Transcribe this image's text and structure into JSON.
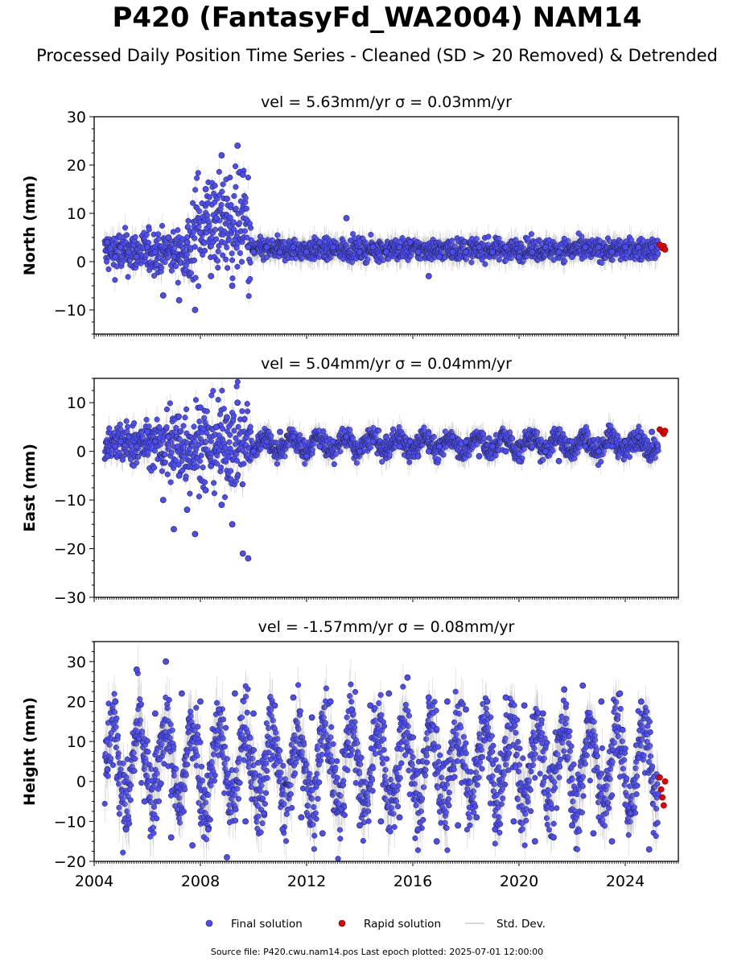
{
  "header": {
    "title": "P420 (FantasyFd_WA2004) NAM14",
    "subtitle": "Processed Daily Position Time Series - Cleaned (SD > 20 Removed) & Detrended"
  },
  "footer": {
    "source": "Source file: P420.cwu.nam14.pos  Last epoch plotted: 2025-07-01 12:00:00"
  },
  "legend": {
    "placement": "bottom-center",
    "items": [
      {
        "label": "Final solution",
        "color": "#4b4bff",
        "marker": "circle"
      },
      {
        "label": "Rapid solution",
        "color": "#e00000",
        "marker": "circle"
      },
      {
        "label": "Std. Dev.",
        "color": "#cccccc",
        "marker": "line"
      }
    ]
  },
  "colors": {
    "final": "#4b4bff",
    "rapid": "#e00000",
    "stddev": "#9a9a9a",
    "edge": "#222222"
  },
  "chart_data": [
    {
      "type": "scatter",
      "title": "vel = 5.63mm/yr   σ = 0.03mm/yr",
      "velocity": "5.63mm/yr",
      "sigma": "0.03mm/yr",
      "ylabel": "North (mm)",
      "xlim": [
        2004.0,
        2026.0
      ],
      "ylim": [
        -15,
        30
      ],
      "xticks": [
        2004,
        2008,
        2012,
        2016,
        2020,
        2024
      ],
      "xtick_labels_shown": false,
      "yticks": [
        -10,
        0,
        10,
        20,
        30
      ],
      "grid": false,
      "series": [
        {
          "name": "Final solution",
          "x": [
            2004.5,
            2004.8,
            2005.0,
            2005.3,
            2005.6,
            2006.0,
            2006.3,
            2006.6,
            2006.8,
            2007.0,
            2007.2,
            2007.5,
            2007.8,
            2008.0,
            2008.2,
            2008.4,
            2008.6,
            2008.8,
            2009.0,
            2009.2,
            2009.4,
            2009.6,
            2009.8,
            2010.0,
            2010.5,
            2011.0,
            2011.5,
            2012.0,
            2012.5,
            2013.0,
            2013.5,
            2014.0,
            2014.5,
            2015.0,
            2015.5,
            2015.9,
            2016.2,
            2016.6,
            2017.0,
            2017.5,
            2018.0,
            2018.5,
            2019.0,
            2019.5,
            2020.0,
            2020.5,
            2021.0,
            2021.5,
            2022.0,
            2022.5,
            2023.0,
            2023.5,
            2024.0,
            2024.5,
            2025.0
          ],
          "y": [
            4,
            1,
            3,
            2,
            1,
            3,
            2,
            -7,
            5,
            1,
            -8,
            4,
            -10,
            6,
            15,
            -3,
            9,
            22,
            13,
            -5,
            24,
            18,
            3,
            2,
            3,
            2,
            3,
            2,
            4,
            3,
            9,
            2,
            3,
            2,
            3,
            4,
            2,
            -3,
            1,
            2,
            2,
            3,
            2,
            3,
            1,
            2,
            3,
            2,
            1,
            3,
            3,
            2,
            3,
            3,
            3
          ]
        },
        {
          "name": "Rapid solution",
          "x": [
            2025.3,
            2025.4,
            2025.45,
            2025.5
          ],
          "y": [
            3.5,
            2.8,
            3.2,
            2.5
          ]
        }
      ]
    },
    {
      "type": "scatter",
      "title": "vel = 5.04mm/yr   σ = 0.04mm/yr",
      "velocity": "5.04mm/yr",
      "sigma": "0.04mm/yr",
      "ylabel": "East (mm)",
      "xlim": [
        2004.0,
        2026.0
      ],
      "ylim": [
        -30,
        15
      ],
      "xticks": [
        2004,
        2008,
        2012,
        2016,
        2020,
        2024
      ],
      "xtick_labels_shown": false,
      "yticks": [
        -30,
        -20,
        -10,
        0,
        10
      ],
      "grid": false,
      "series": [
        {
          "name": "Final solution",
          "x": [
            2004.5,
            2004.8,
            2005.0,
            2005.3,
            2005.6,
            2006.0,
            2006.3,
            2006.6,
            2006.8,
            2007.0,
            2007.2,
            2007.5,
            2007.8,
            2008.0,
            2008.2,
            2008.4,
            2008.6,
            2008.8,
            2009.0,
            2009.2,
            2009.4,
            2009.6,
            2009.8,
            2010.0,
            2010.5,
            2011.0,
            2011.5,
            2012.0,
            2012.5,
            2013.0,
            2013.5,
            2014.0,
            2014.5,
            2015.0,
            2015.5,
            2015.9,
            2016.2,
            2016.6,
            2017.0,
            2017.5,
            2018.0,
            2018.5,
            2019.0,
            2019.5,
            2020.0,
            2020.5,
            2021.0,
            2021.5,
            2022.0,
            2022.5,
            2023.0,
            2023.5,
            2024.0,
            2024.5,
            2025.0
          ],
          "y": [
            -1,
            1,
            2,
            3,
            1,
            4,
            2,
            -10,
            3,
            -16,
            -5,
            -12,
            -17,
            9,
            -8,
            -3,
            5,
            -11,
            7,
            -15,
            10,
            -21,
            -22,
            0,
            2,
            4,
            3,
            -1,
            1,
            2,
            3,
            0,
            2,
            3,
            1,
            2,
            -1,
            0,
            1,
            3,
            2,
            -1,
            1,
            0,
            -2,
            1,
            0,
            -2,
            2,
            1,
            0,
            1,
            2,
            3,
            4
          ]
        },
        {
          "name": "Rapid solution",
          "x": [
            2025.3,
            2025.4,
            2025.45,
            2025.5
          ],
          "y": [
            4.5,
            4.0,
            3.6,
            4.2
          ]
        }
      ]
    },
    {
      "type": "scatter",
      "title": "vel = -1.57mm/yr   σ = 0.08mm/yr",
      "velocity": "-1.57mm/yr",
      "sigma": "0.08mm/yr",
      "ylabel": "Height (mm)",
      "xlim": [
        2004.0,
        2026.0
      ],
      "ylim": [
        -20,
        35
      ],
      "xticks": [
        2004,
        2008,
        2012,
        2016,
        2020,
        2024
      ],
      "xtick_labels_shown": true,
      "yticks": [
        -20,
        -10,
        0,
        10,
        20,
        30
      ],
      "grid": false,
      "series": [
        {
          "name": "Final solution",
          "x": [
            2004.5,
            2004.8,
            2005.2,
            2005.6,
            2005.9,
            2006.3,
            2006.7,
            2006.9,
            2007.3,
            2007.7,
            2008.0,
            2008.3,
            2008.7,
            2009.0,
            2009.3,
            2009.7,
            2010.0,
            2010.4,
            2010.8,
            2011.1,
            2011.5,
            2011.8,
            2012.2,
            2012.6,
            2012.9,
            2013.3,
            2013.7,
            2014.0,
            2014.4,
            2014.8,
            2015.1,
            2015.5,
            2015.8,
            2016.2,
            2016.6,
            2016.9,
            2017.3,
            2017.7,
            2018.0,
            2018.4,
            2018.8,
            2019.1,
            2019.5,
            2019.8,
            2020.2,
            2020.6,
            2020.9,
            2021.3,
            2021.7,
            2022.0,
            2022.4,
            2022.8,
            2023.1,
            2023.5,
            2023.8,
            2024.2,
            2024.6,
            2024.9
          ],
          "y": [
            3,
            20,
            -12,
            28,
            -5,
            17,
            30,
            -14,
            22,
            -16,
            20,
            -12,
            18,
            -19,
            22,
            -10,
            17,
            -8,
            19,
            -12,
            21,
            -9,
            16,
            -13,
            20,
            -7,
            18,
            -11,
            19,
            -10,
            22,
            -9,
            26,
            -12,
            21,
            -15,
            20,
            -11,
            18,
            -9,
            20,
            -12,
            21,
            -10,
            19,
            -15,
            17,
            -14,
            23,
            -11,
            24,
            -13,
            20,
            -15,
            22,
            -8,
            20,
            -17
          ]
        },
        {
          "name": "Rapid solution",
          "x": [
            2025.3,
            2025.35,
            2025.4,
            2025.45,
            2025.5
          ],
          "y": [
            1,
            -2,
            -4,
            -6,
            0
          ]
        }
      ]
    }
  ]
}
